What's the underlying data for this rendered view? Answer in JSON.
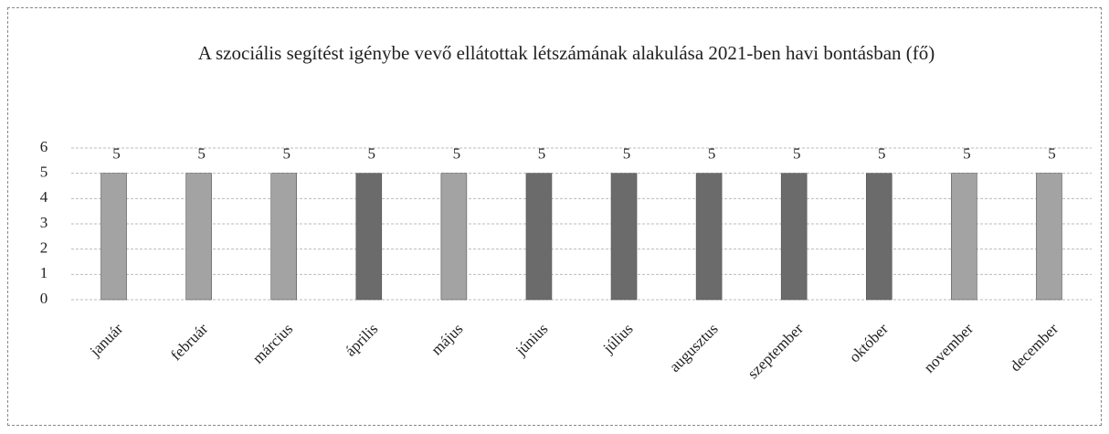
{
  "chart_data": {
    "type": "bar",
    "title": "A szociális segítést igénybe vevő ellátottak létszámának alakulása 2021-ben havi bontásban (fő)",
    "categories": [
      "január",
      "február",
      "március",
      "április",
      "május",
      "június",
      "július",
      "augusztus",
      "szeptember",
      "október",
      "november",
      "december"
    ],
    "values": [
      5,
      5,
      5,
      5,
      5,
      5,
      5,
      5,
      5,
      5,
      5,
      5
    ],
    "colors": [
      "#a3a3a3",
      "#a3a3a3",
      "#a3a3a3",
      "#6b6b6b",
      "#a3a3a3",
      "#6b6b6b",
      "#6b6b6b",
      "#6b6b6b",
      "#6b6b6b",
      "#6b6b6b",
      "#a3a3a3",
      "#a3a3a3"
    ],
    "ylim": [
      0,
      6
    ],
    "yticks": [
      0,
      1,
      2,
      3,
      4,
      5,
      6
    ],
    "grid": true
  }
}
